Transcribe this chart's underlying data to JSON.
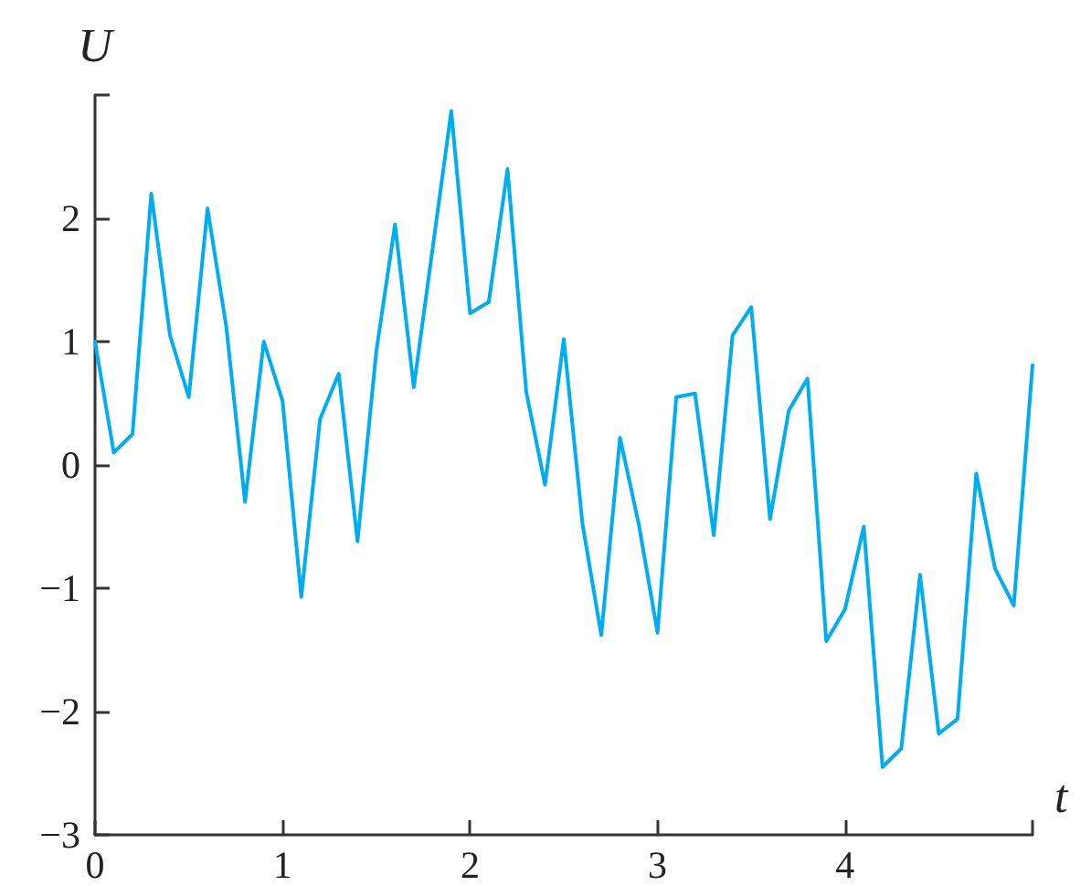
{
  "chart_data": {
    "type": "line",
    "xlabel": "t",
    "ylabel": "U",
    "x": [
      0,
      0.1,
      0.2,
      0.3,
      0.4,
      0.5,
      0.6,
      0.7,
      0.8,
      0.9,
      1.0,
      1.1,
      1.2,
      1.3,
      1.4,
      1.5,
      1.6,
      1.7,
      1.8,
      1.9,
      2.0,
      2.1,
      2.2,
      2.3,
      2.4,
      2.5,
      2.6,
      2.7,
      2.8,
      2.9,
      3.0,
      3.1,
      3.2,
      3.3,
      3.4,
      3.5,
      3.6,
      3.7,
      3.8,
      3.9,
      4.0,
      4.1,
      4.2,
      4.3,
      4.4,
      4.5,
      4.6,
      4.7,
      4.8,
      4.9,
      5.0
    ],
    "series": [
      {
        "color": "#00aeef",
        "values": [
          1.0,
          0.1,
          0.25,
          2.2,
          1.05,
          0.55,
          2.08,
          1.12,
          -0.3,
          1.0,
          0.52,
          -1.07,
          0.37,
          0.74,
          -0.62,
          0.92,
          1.95,
          0.63,
          1.75,
          2.87,
          1.23,
          1.32,
          2.4,
          0.59,
          -0.16,
          1.02,
          -0.48,
          -1.38,
          0.22,
          -0.48,
          -1.36,
          0.55,
          0.58,
          -0.57,
          1.05,
          1.28,
          -0.44,
          0.44,
          0.7,
          -1.43,
          -1.17,
          -0.5,
          -2.45,
          -2.3,
          -0.89,
          -2.18,
          -2.06,
          -0.07,
          -0.84,
          -1.14,
          0.81
        ]
      }
    ],
    "xlim": [
      0,
      5
    ],
    "xticks": [
      0,
      1,
      2,
      3,
      4,
      {
        "value": 5,
        "label": null
      }
    ],
    "ylim": [
      -3,
      3
    ],
    "yticks": [
      -3,
      -2,
      -1,
      0,
      1,
      2,
      {
        "value": 3,
        "label": null
      }
    ],
    "marker": "none",
    "line_style": "solid"
  }
}
